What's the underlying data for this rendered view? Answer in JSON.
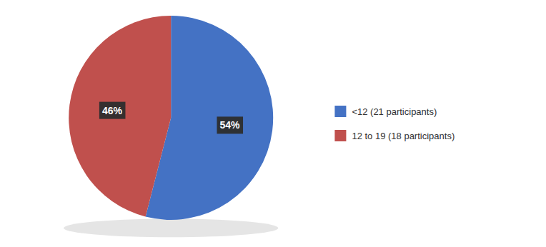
{
  "chart_data": {
    "type": "pie",
    "categories": [
      "<12 (21 participants)",
      "12 to 19 (18 participants)"
    ],
    "values": [
      54,
      46
    ],
    "value_labels": [
      "54%",
      "46%"
    ],
    "colors": [
      "#4472C4",
      "#C0504D"
    ],
    "data_labels": true,
    "legend": "right"
  }
}
